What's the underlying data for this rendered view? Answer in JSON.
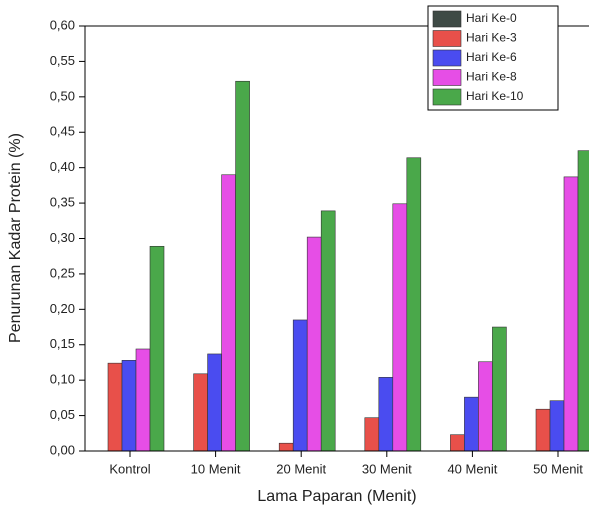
{
  "chart_data": {
    "type": "bar",
    "x_label": "Lama Paparan (Menit)",
    "y_label": "Penurunan Kadar Protein (%)",
    "categories": [
      "Kontrol",
      "10 Menit",
      "20 Menit",
      "30 Menit",
      "40 Menit",
      "50 Menit"
    ],
    "series": [
      {
        "name": "Hari Ke-0",
        "color": "#3e4a45",
        "values": [
          0,
          0,
          0,
          0,
          0,
          0
        ]
      },
      {
        "name": "Hari Ke-3",
        "color": "#e8504a",
        "values": [
          0.124,
          0.109,
          0.011,
          0.047,
          0.023,
          0.059
        ]
      },
      {
        "name": "Hari Ke-6",
        "color": "#4a4cf0",
        "values": [
          0.128,
          0.137,
          0.185,
          0.104,
          0.076,
          0.071
        ]
      },
      {
        "name": "Hari Ke-8",
        "color": "#e64ee6",
        "values": [
          0.144,
          0.39,
          0.302,
          0.349,
          0.126,
          0.387
        ]
      },
      {
        "name": "Hari Ke-10",
        "color": "#4aa84a",
        "values": [
          0.289,
          0.522,
          0.339,
          0.414,
          0.175,
          0.424
        ]
      }
    ],
    "ylim": [
      0,
      0.6
    ],
    "yticks": [
      {
        "value": 0,
        "label": "0,00"
      },
      {
        "value": 0.05,
        "label": "0,05"
      },
      {
        "value": 0.1,
        "label": "0,10"
      },
      {
        "value": 0.15,
        "label": "0,15"
      },
      {
        "value": 0.2,
        "label": "0,20"
      },
      {
        "value": 0.25,
        "label": "0,25"
      },
      {
        "value": 0.3,
        "label": "0,30"
      },
      {
        "value": 0.35,
        "label": "0,35"
      },
      {
        "value": 0.4,
        "label": "0,40"
      },
      {
        "value": 0.45,
        "label": "0,45"
      },
      {
        "value": 0.5,
        "label": "0,50"
      },
      {
        "value": 0.55,
        "label": "0,55"
      },
      {
        "value": 0.6,
        "label": "0,60"
      }
    ],
    "legend": "top-right"
  }
}
